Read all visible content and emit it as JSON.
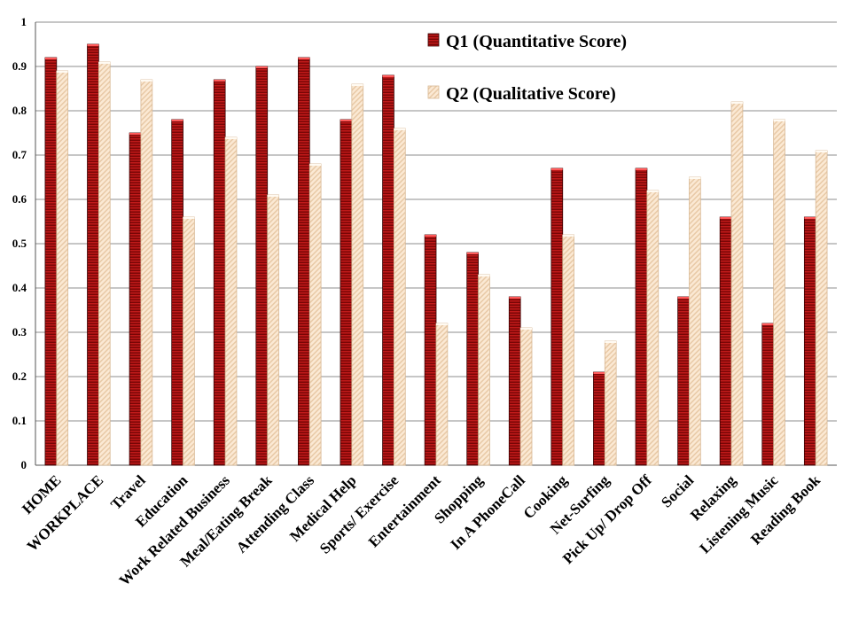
{
  "chart_data": {
    "type": "bar",
    "categories": [
      "HOME",
      "WORKPLACE",
      "Travel",
      "Education",
      "Work Related Business",
      "Meal/Eating Break",
      "Attending Class",
      "Medical Help",
      "Sports/ Exercise",
      "Entertainment",
      "Shopping",
      "In A PhoneCall",
      "Cooking",
      "Net-Surfing",
      "Pick Up/ Drop Off",
      "Social",
      "Relaxing",
      "Listening Music",
      "Reading Book"
    ],
    "series": [
      {
        "name": "Q1 (Quantitative Score)",
        "color": "#8b0a0a",
        "values": [
          0.92,
          0.95,
          0.75,
          0.78,
          0.87,
          0.9,
          0.92,
          0.78,
          0.88,
          0.52,
          0.48,
          0.38,
          0.67,
          0.21,
          0.67,
          0.38,
          0.56,
          0.32,
          0.56
        ]
      },
      {
        "name": "Q2 (Qualitative Score)",
        "color": "#f5dcc0",
        "values": [
          0.89,
          0.91,
          0.87,
          0.56,
          0.74,
          0.61,
          0.68,
          0.86,
          0.76,
          0.32,
          0.43,
          0.31,
          0.52,
          0.28,
          0.62,
          0.65,
          0.82,
          0.78,
          0.71
        ]
      }
    ],
    "ylim": [
      0,
      1
    ],
    "yticks": [
      "0",
      "0.1",
      "0.2",
      "0.3",
      "0.4",
      "0.5",
      "0.6",
      "0.7",
      "0.8",
      "0.9",
      "1"
    ],
    "grid": true,
    "legend_position": "top-right"
  }
}
